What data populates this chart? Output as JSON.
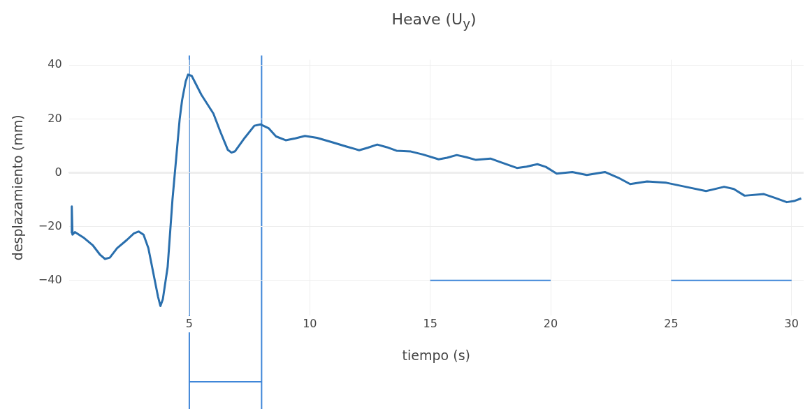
{
  "chart_data": {
    "type": "line",
    "title": "Heave (U$_{y}$)",
    "xlabel": "tiempo (s)",
    "ylabel": "desplazamiento (mm)",
    "xlim": [
      0,
      30.5
    ],
    "ylim": [
      -53,
      42
    ],
    "xticks": [
      5,
      10,
      15,
      20,
      25,
      30
    ],
    "yticks": [
      -40,
      -20,
      0,
      20,
      40
    ],
    "grid": true,
    "legend": false,
    "marker": "none",
    "line_style": "solid",
    "series": [
      {
        "color": "#2a6fad",
        "x": [
          0.1,
          0.12,
          0.15,
          0.25,
          0.6,
          1.0,
          1.3,
          1.5,
          1.7,
          2.0,
          2.4,
          2.7,
          2.9,
          3.1,
          3.3,
          3.5,
          3.7,
          3.8,
          3.9,
          4.1,
          4.3,
          4.45,
          4.6,
          4.7,
          4.85,
          4.95,
          5.1,
          5.5,
          6.0,
          6.3,
          6.6,
          6.75,
          6.9,
          7.3,
          7.7,
          7.95,
          8.3,
          8.6,
          9.0,
          9.4,
          9.8,
          10.3,
          10.95,
          11.5,
          12.05,
          12.4,
          12.8,
          13.2,
          13.6,
          14.2,
          14.7,
          15.35,
          15.7,
          16.1,
          16.5,
          16.9,
          17.5,
          17.9,
          18.6,
          19.0,
          19.45,
          19.8,
          20.25,
          20.9,
          21.5,
          22.25,
          22.8,
          23.3,
          24.0,
          24.8,
          25.6,
          26.45,
          27.2,
          27.6,
          28.05,
          28.85,
          29.3,
          29.8,
          30.1,
          30.4
        ],
        "values": [
          -22.5,
          -12.5,
          -23,
          -22,
          -24,
          -27,
          -30.5,
          -32,
          -31.5,
          -28,
          -25,
          -22.5,
          -21.8,
          -23,
          -28,
          -37,
          -46,
          -49.5,
          -47,
          -35,
          -10,
          5,
          20,
          27,
          34,
          36.5,
          36,
          29,
          22,
          15,
          8.5,
          7.5,
          8,
          13,
          17.5,
          18,
          16.5,
          13.5,
          12.1,
          12.8,
          13.7,
          13,
          11.3,
          9.8,
          8.4,
          9.3,
          10.5,
          9.5,
          8.2,
          7.9,
          6.8,
          5,
          5.6,
          6.6,
          5.8,
          4.8,
          5.3,
          4,
          1.8,
          2.3,
          3.2,
          2.2,
          -0.3,
          0.3,
          -0.8,
          0.3,
          -1.8,
          -4.2,
          -3.2,
          -3.7,
          -5.2,
          -6.8,
          -5.2,
          -6,
          -8.5,
          -7.9,
          -9.3,
          -10.9,
          -10.5,
          -9.5
        ]
      },
      {
        "color": "#3f86d8",
        "x": [
          15,
          20
        ],
        "values": [
          -40,
          -40
        ]
      },
      {
        "color": "#3f86d8",
        "x": [
          25,
          30
        ],
        "values": [
          -40,
          -40
        ]
      }
    ],
    "ref_lines": [
      {
        "axis": "y",
        "value": 0,
        "color": "#bdbdbd"
      },
      {
        "axis": "x",
        "value": 5,
        "color": "#3f86d8"
      },
      {
        "axis": "x",
        "value": 8,
        "color": "#3f86d8"
      }
    ]
  }
}
